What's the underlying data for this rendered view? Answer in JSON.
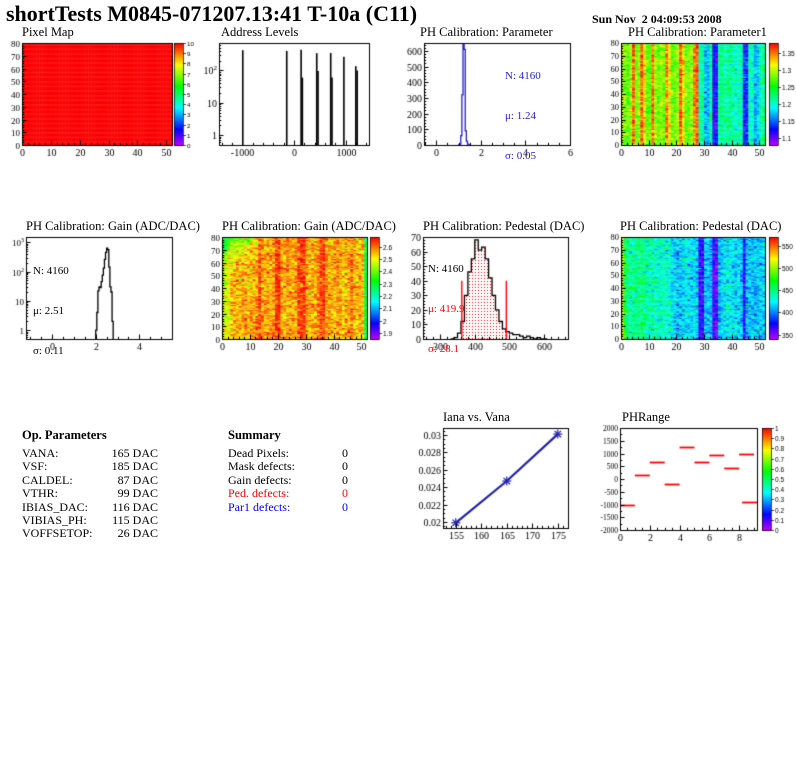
{
  "header": {
    "title": "shortTests M0845-071207.13:41 T-10a (C11)",
    "date": "Sun Nov  2 04:09:53 2008"
  },
  "op_parameters": {
    "title": "Op. Parameters",
    "rows": [
      {
        "label": "VANA:",
        "value": "165 DAC"
      },
      {
        "label": "VSF:",
        "value": "185 DAC"
      },
      {
        "label": "CALDEL:",
        "value": "87 DAC"
      },
      {
        "label": "VTHR:",
        "value": "99 DAC"
      },
      {
        "label": "IBIAS_DAC:",
        "value": "116 DAC"
      },
      {
        "label": "VIBIAS_PH:",
        "value": "115 DAC"
      },
      {
        "label": "VOFFSETOP:",
        "value": "26 DAC"
      }
    ]
  },
  "summary": {
    "title": "Summary",
    "rows": [
      {
        "label": "Dead Pixels:",
        "value": "0",
        "color": "#000000"
      },
      {
        "label": "Mask defects:",
        "value": "0",
        "color": "#000000"
      },
      {
        "label": "Gain defects:",
        "value": "0",
        "color": "#000000"
      },
      {
        "label": "Ped. defects:",
        "value": "0",
        "color": "#ff0000"
      },
      {
        "label": "Par1 defects:",
        "value": "0",
        "color": "#0000ff"
      }
    ]
  },
  "chart_data": [
    {
      "id": "pixel_map",
      "type": "heatmap",
      "title": "Pixel Map",
      "nx": 52,
      "ny": 80,
      "uniform_value": 10,
      "zmin": 0,
      "zmax": 10,
      "colorbar_ticks": [
        0,
        1,
        2,
        3,
        4,
        5,
        6,
        7,
        8,
        9,
        10
      ],
      "x": {
        "min": 0,
        "max": 52,
        "ticks": [
          0,
          10,
          20,
          30,
          40,
          50
        ],
        "minor": 2
      },
      "y": {
        "min": 0,
        "max": 80,
        "ticks": [
          0,
          10,
          20,
          30,
          40,
          50,
          60,
          70,
          80
        ],
        "minor": 2
      }
    },
    {
      "id": "address_levels",
      "type": "spikes",
      "title": "Address Levels",
      "x": {
        "min": -1450,
        "max": 1450,
        "ticks": [
          -1000,
          0,
          1000
        ],
        "minor": 200
      },
      "y": {
        "min": 0.5,
        "max": 700,
        "log": true
      },
      "spikes": [
        [
          -1000,
          420
        ],
        [
          -150,
          400
        ],
        [
          128,
          430
        ],
        [
          152,
          60
        ],
        [
          430,
          340
        ],
        [
          455,
          95
        ],
        [
          700,
          345
        ],
        [
          725,
          60
        ],
        [
          955,
          265
        ],
        [
          1185,
          135
        ],
        [
          1212,
          100
        ]
      ]
    },
    {
      "id": "ph_calibration_parameter",
      "type": "hist",
      "title": "PH Calibration: Parameter",
      "color": "#2222cc",
      "stats_lines": [
        {
          "text": "N: 4160",
          "color": "#2222cc"
        },
        {
          "text": "μ: 1.24",
          "color": "#2222cc"
        },
        {
          "text": "σ: 0.05",
          "color": "#2222cc"
        }
      ],
      "x": {
        "min": -0.55,
        "max": 6,
        "ticks": [
          0,
          2,
          4,
          6
        ],
        "minor": 0.5
      },
      "y": {
        "min": 0,
        "max": 650,
        "ticks": [
          0,
          100,
          200,
          300,
          400,
          500,
          600
        ],
        "minor": 20
      },
      "bins": {
        "start": 1.0,
        "width": 0.05,
        "values": [
          1,
          5,
          60,
          320,
          640,
          610,
          90,
          25,
          6,
          1
        ]
      }
    },
    {
      "id": "ph_calibration_parameter1",
      "type": "heatmap",
      "title": "PH Calibration: Parameter1",
      "nx": 52,
      "ny": 80,
      "zmin": 1.08,
      "zmax": 1.38,
      "noise": 0.016,
      "seed": 11,
      "colorbar_ticks": [
        1.1,
        1.15,
        1.2,
        1.25,
        1.3,
        1.35
      ],
      "col_means": [
        1.3,
        1.28,
        1.27,
        1.29,
        1.355,
        1.28,
        1.29,
        1.355,
        1.32,
        1.28,
        1.28,
        1.355,
        1.29,
        1.28,
        1.29,
        1.28,
        1.345,
        1.32,
        1.28,
        1.28,
        1.29,
        1.355,
        1.32,
        1.28,
        1.28,
        1.29,
        1.345,
        1.355,
        1.21,
        1.22,
        1.17,
        1.17,
        1.22,
        1.125,
        1.125,
        1.22,
        1.22,
        1.21,
        1.22,
        1.22,
        1.21,
        1.2,
        1.21,
        1.21,
        1.135,
        1.135,
        1.21,
        1.2,
        1.17,
        1.18,
        1.21,
        1.22
      ],
      "x": {
        "min": 0,
        "max": 52,
        "ticks": [
          0,
          10,
          20,
          30,
          40,
          50
        ],
        "minor": 2
      },
      "y": {
        "min": 0,
        "max": 80,
        "ticks": [
          0,
          10,
          20,
          30,
          40,
          50,
          60,
          70,
          80
        ],
        "minor": 2
      }
    },
    {
      "id": "ph_calibration_gain_hist",
      "type": "hist",
      "title": "PH Calibration: Gain (ADC/DAC)",
      "color": "#000000",
      "stats_lines": [
        {
          "text": "N: 4160",
          "color": "#000000"
        },
        {
          "text": "μ: 2.51",
          "color": "#000000"
        },
        {
          "text": "σ: 0.11",
          "color": "#000000"
        }
      ],
      "x": {
        "min": -1.2,
        "max": 5.5,
        "ticks": [
          0,
          2,
          4
        ],
        "minor": 0.5
      },
      "y": {
        "min": 0.5,
        "max": 1500,
        "log": true
      },
      "bins": {
        "start": 2.0,
        "width": 0.05,
        "values": [
          1,
          4,
          22,
          30,
          28,
          45,
          75,
          130,
          260,
          450,
          620,
          560,
          140,
          30,
          20,
          2
        ]
      }
    },
    {
      "id": "ph_calibration_gain_map",
      "type": "heatmap",
      "title": "PH Calibration: Gain (ADC/DAC)",
      "nx": 52,
      "ny": 80,
      "zmin": 1.85,
      "zmax": 2.68,
      "noise": 0.05,
      "seed": 23,
      "corner": {
        "cols": 16,
        "rows": 22,
        "delta": -0.22
      },
      "colorbar_ticks": [
        1.9,
        2,
        2.1,
        2.2,
        2.3,
        2.4,
        2.5,
        2.6
      ],
      "col_means": [
        2.46,
        2.48,
        2.5,
        2.54,
        2.54,
        2.56,
        2.54,
        2.56,
        2.56,
        2.54,
        2.56,
        2.56,
        2.58,
        2.64,
        2.58,
        2.56,
        2.56,
        2.56,
        2.58,
        2.64,
        2.64,
        2.58,
        2.56,
        2.58,
        2.56,
        2.56,
        2.58,
        2.64,
        2.64,
        2.64,
        2.58,
        2.56,
        2.56,
        2.56,
        2.58,
        2.64,
        2.64,
        2.58,
        2.56,
        2.56,
        2.56,
        2.58,
        2.56,
        2.54,
        2.56,
        2.58,
        2.6,
        2.56,
        2.54,
        2.56,
        2.54,
        2.3
      ],
      "x": {
        "min": 0,
        "max": 52,
        "ticks": [
          0,
          10,
          20,
          30,
          40,
          50
        ],
        "minor": 2
      },
      "y": {
        "min": 0,
        "max": 80,
        "ticks": [
          0,
          10,
          20,
          30,
          40,
          50,
          60,
          70,
          80
        ],
        "minor": 2
      }
    },
    {
      "id": "ph_calibration_pedestal_hist",
      "type": "hist",
      "title": "PH Calibration: Pedestal (DAC)",
      "color": "#000000",
      "stats_lines": [
        {
          "text": "N: 4160",
          "color": "#000000"
        },
        {
          "text": "μ: 419.9",
          "color": "#ff0000"
        },
        {
          "text": "σ: 28.1",
          "color": "#ff0000"
        }
      ],
      "x": {
        "min": 250,
        "max": 670,
        "ticks": [
          300,
          400,
          500,
          600
        ],
        "minor": 20
      },
      "y": {
        "min": 0,
        "max": 70,
        "ticks": [
          0,
          10,
          20,
          30,
          40,
          50,
          60,
          70
        ],
        "minor": 2
      },
      "bins": {
        "start": 330,
        "width": 10,
        "values": [
          0,
          1,
          4,
          12,
          30,
          46,
          55,
          68,
          61,
          63,
          55,
          42,
          30,
          20,
          12,
          7,
          5,
          4,
          3,
          3,
          2,
          1,
          2,
          1,
          0,
          1,
          0,
          0
        ]
      },
      "fill_range": [
        361,
        490
      ],
      "vlines": {
        "color": "#ff0000",
        "x": [
          361,
          490
        ],
        "h": 40
      }
    },
    {
      "id": "ph_calibration_pedestal_map",
      "type": "heatmap",
      "title": "PH Calibration: Pedestal (DAC)",
      "nx": 52,
      "ny": 80,
      "zmin": 340,
      "zmax": 570,
      "noise": 14,
      "seed": 37,
      "colorbar_ticks": [
        350,
        400,
        450,
        500,
        550
      ],
      "col_means": [
        520,
        468,
        448,
        442,
        444,
        446,
        450,
        452,
        446,
        440,
        438,
        440,
        438,
        436,
        434,
        436,
        434,
        432,
        420,
        416,
        412,
        414,
        420,
        424,
        420,
        418,
        420,
        416,
        368,
        372,
        412,
        416,
        408,
        362,
        360,
        412,
        420,
        424,
        426,
        424,
        420,
        416,
        418,
        414,
        372,
        410,
        416,
        414,
        412,
        414,
        416,
        418
      ],
      "x": {
        "min": 0,
        "max": 52,
        "ticks": [
          0,
          10,
          20,
          30,
          40,
          50
        ],
        "minor": 2
      },
      "y": {
        "min": 0,
        "max": 80,
        "ticks": [
          0,
          10,
          20,
          30,
          40,
          50,
          60,
          70,
          80
        ],
        "minor": 2
      }
    },
    {
      "id": "iana_vs_vana",
      "type": "line",
      "title": "Iana vs. Vana",
      "color": "#2020b0",
      "points": [
        [
          155,
          0.0199
        ],
        [
          165,
          0.0247
        ],
        [
          175,
          0.0301
        ]
      ],
      "x": {
        "min": 152.5,
        "max": 177,
        "ticks": [
          155,
          160,
          165,
          170,
          175
        ],
        "minor": 1
      },
      "y": {
        "min": 0.0193,
        "max": 0.0308,
        "ticks": [
          0.02,
          0.022,
          0.024,
          0.026,
          0.028,
          0.03
        ],
        "minor": 0.0005
      }
    },
    {
      "id": "phrange",
      "type": "segments",
      "title": "PHRange",
      "color": "#ff0000",
      "zmin": 0,
      "zmax": 1,
      "colorbar_ticks": [
        0,
        0.1,
        0.2,
        0.3,
        0.4,
        0.5,
        0.6,
        0.7,
        0.8,
        0.9,
        1
      ],
      "segments": [
        [
          0,
          1,
          -1000
        ],
        [
          1,
          2,
          150
        ],
        [
          2,
          3,
          680
        ],
        [
          3,
          4,
          -200
        ],
        [
          4,
          5,
          1250
        ],
        [
          5,
          6,
          680
        ],
        [
          6,
          7,
          950
        ],
        [
          7,
          8,
          430
        ],
        [
          8,
          9,
          1000
        ],
        [
          8.2,
          9.2,
          -900
        ]
      ],
      "x": {
        "min": 0,
        "max": 9.2,
        "ticks": [
          0,
          2,
          4,
          6,
          8
        ],
        "minor": 0.5
      },
      "y": {
        "min": -2000,
        "max": 2000,
        "ticks": [
          -2000,
          -1500,
          -1000,
          -500,
          0,
          500,
          1000,
          1500,
          2000
        ],
        "minor": 250
      }
    }
  ]
}
